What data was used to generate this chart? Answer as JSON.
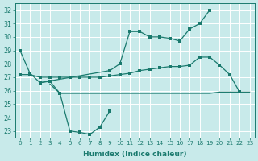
{
  "bg_color": "#c8eaea",
  "grid_color": "#ffffff",
  "line_color": "#1a7a6e",
  "xlabel": "Humidex (Indice chaleur)",
  "xlim": [
    -0.5,
    23.5
  ],
  "ylim": [
    22.5,
    32.5
  ],
  "yticks": [
    23,
    24,
    25,
    26,
    27,
    28,
    29,
    30,
    31,
    32
  ],
  "xticks": [
    0,
    1,
    2,
    3,
    4,
    5,
    6,
    7,
    8,
    9,
    10,
    11,
    12,
    13,
    14,
    15,
    16,
    17,
    18,
    19,
    20,
    21,
    22,
    23
  ],
  "line1_x": [
    0,
    1,
    2,
    9,
    10,
    11,
    12,
    13,
    14,
    15,
    16,
    17,
    18,
    19
  ],
  "line1_y": [
    29.0,
    27.3,
    26.6,
    27.5,
    28.0,
    30.4,
    30.4,
    30.0,
    30.0,
    29.9,
    29.7,
    30.6,
    31.0,
    32.0
  ],
  "line2_x": [
    0,
    1,
    2,
    3,
    4,
    5,
    6,
    7,
    8,
    9,
    10,
    11,
    12,
    13,
    14,
    15,
    16,
    17,
    18,
    19,
    20,
    21,
    22
  ],
  "line2_y": [
    27.2,
    27.2,
    27.0,
    27.0,
    27.0,
    27.0,
    27.0,
    27.0,
    27.0,
    27.1,
    27.2,
    27.3,
    27.5,
    27.6,
    27.7,
    27.8,
    27.8,
    27.9,
    28.5,
    28.5,
    27.9,
    27.2,
    25.9
  ],
  "line3_x": [
    2,
    3,
    4,
    5,
    6,
    7,
    8,
    9
  ],
  "line3_y": [
    26.6,
    26.7,
    25.8,
    23.0,
    22.9,
    22.75,
    23.3,
    24.5
  ],
  "line4_x": [
    3,
    4,
    5,
    6,
    7,
    8,
    9,
    10,
    11,
    12,
    13,
    14,
    15,
    16,
    17,
    18,
    19,
    20,
    21,
    22,
    23
  ],
  "line4_y": [
    26.5,
    25.8,
    25.8,
    25.8,
    25.8,
    25.8,
    25.8,
    25.8,
    25.8,
    25.8,
    25.8,
    25.8,
    25.8,
    25.8,
    25.8,
    25.8,
    25.8,
    25.9,
    25.9,
    25.9,
    25.9
  ]
}
